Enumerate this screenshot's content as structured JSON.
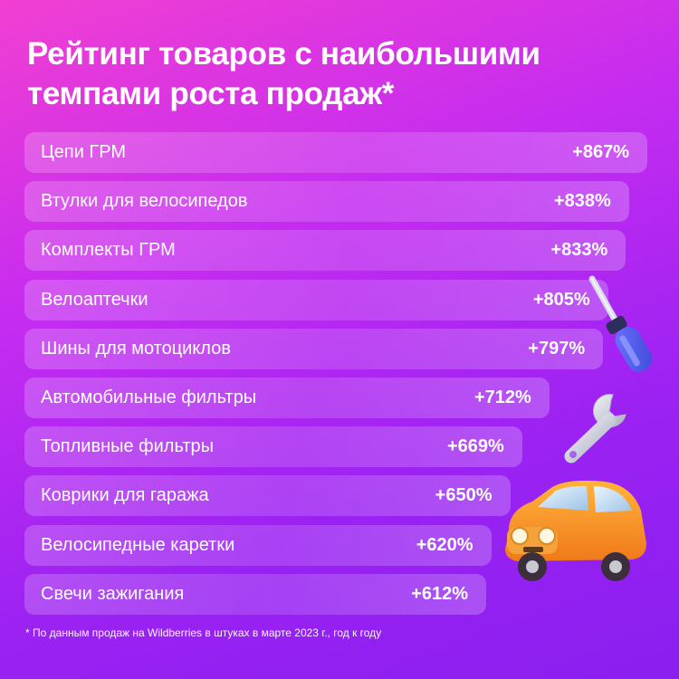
{
  "title_line1": "Рейтинг товаров с наибольшими",
  "title_line2": "темпами роста продаж*",
  "footnote": "* По данным продаж на Wildberries в штуках в марте 2023 г., год к году",
  "chart_data": {
    "type": "bar",
    "orientation": "horizontal",
    "categories": [
      "Цепи ГРМ",
      "Втулки для велосипедов",
      "Комплекты ГРМ",
      "Велоаптечки",
      "Шины для мотоциклов",
      "Автомобильные фильтры",
      "Топливные фильтры",
      "Коврики для гаража",
      "Велосипедные каретки",
      "Свечи зажигания"
    ],
    "values": [
      867,
      838,
      833,
      805,
      797,
      712,
      669,
      650,
      620,
      612
    ],
    "value_labels": [
      "+867%",
      "+838%",
      "+833%",
      "+805%",
      "+797%",
      "+712%",
      "+669%",
      "+650%",
      "+620%",
      "+612%"
    ],
    "unit": "%"
  },
  "colors": {
    "bg_top": "#f13fd2",
    "bg_bottom": "#8a1ff0",
    "text": "#ffffff"
  },
  "icons": [
    "screwdriver-icon",
    "wrench-icon",
    "car-icon"
  ]
}
